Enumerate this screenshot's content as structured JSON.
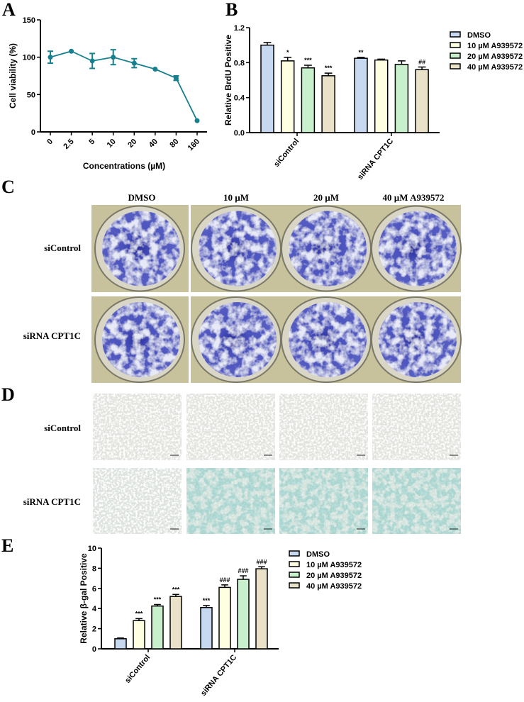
{
  "panel_labels": {
    "a": "A",
    "b": "B",
    "c": "C",
    "d": "D",
    "e": "E"
  },
  "chart_data": [
    {
      "type": "line",
      "panel": "A",
      "ylabel": "Cell viability (%)",
      "xlabel": "Concentrations (µM)",
      "categories": [
        "0",
        "2.5",
        "5",
        "10",
        "20",
        "40",
        "80",
        "160"
      ],
      "series": [
        {
          "values": [
            100,
            108,
            95,
            100,
            92,
            84,
            72,
            15
          ],
          "errors": [
            8,
            1,
            10,
            10,
            6,
            1,
            3,
            1
          ],
          "color": "#17808f"
        }
      ],
      "ylim": [
        0,
        150
      ],
      "yticks": [
        "0",
        "50",
        "100",
        "150"
      ],
      "grid": false
    },
    {
      "type": "bar",
      "panel": "B",
      "ylabel": "Relative BrdU Positive",
      "categories": [
        "siControl",
        "siRNA CPT1C"
      ],
      "series": [
        {
          "name": "DMSO",
          "values": [
            1.0,
            0.85
          ],
          "errors": [
            0.03,
            0.01
          ],
          "annotations": [
            "",
            "**"
          ],
          "color": "#c6d9f1"
        },
        {
          "name": "10 µM A939572",
          "values": [
            0.82,
            0.83
          ],
          "errors": [
            0.04,
            0.01
          ],
          "annotations": [
            "*",
            ""
          ],
          "color": "#fefee0"
        },
        {
          "name": "20 µM A939572",
          "values": [
            0.74,
            0.78
          ],
          "errors": [
            0.03,
            0.04
          ],
          "annotations": [
            "***",
            ""
          ],
          "color": "#c8f0cc"
        },
        {
          "name": "40 µM A939572",
          "values": [
            0.65,
            0.72
          ],
          "errors": [
            0.03,
            0.03
          ],
          "annotations": [
            "***",
            "##"
          ],
          "color": "#e9e2c8"
        }
      ],
      "ylim": [
        0,
        1.2
      ],
      "yticks": [
        "0.0",
        "0.4",
        "0.8",
        "1.2"
      ],
      "legend": "right",
      "grid": false
    },
    {
      "type": "bar",
      "panel": "E",
      "ylabel": "Relative β-gal Positive",
      "categories": [
        "siControl",
        "siRNA CPT1C"
      ],
      "series": [
        {
          "name": "DMSO",
          "values": [
            1.0,
            4.1
          ],
          "errors": [
            0.08,
            0.2
          ],
          "annotations": [
            "",
            "***"
          ],
          "color": "#c6d9f1"
        },
        {
          "name": "10 µM A939572",
          "values": [
            2.8,
            6.1
          ],
          "errors": [
            0.2,
            0.25
          ],
          "annotations": [
            "***",
            "###"
          ],
          "color": "#fefee0"
        },
        {
          "name": "20 µM A939572",
          "values": [
            4.25,
            6.9
          ],
          "errors": [
            0.15,
            0.35
          ],
          "annotations": [
            "***",
            "###"
          ],
          "color": "#c8f0cc"
        },
        {
          "name": "40 µM A939572",
          "values": [
            5.2,
            7.95
          ],
          "errors": [
            0.2,
            0.2
          ],
          "annotations": [
            "***",
            "###"
          ],
          "color": "#e9e2c8"
        }
      ],
      "ylim": [
        0,
        10
      ],
      "yticks": [
        "0",
        "2",
        "4",
        "6",
        "8",
        "10"
      ],
      "legend": "right",
      "grid": false
    }
  ],
  "colony_panel": {
    "columns": [
      "DMSO",
      "10 µM",
      "20 µM",
      "40 µM A939572"
    ],
    "rows": [
      "siControl",
      "siRNA CPT1C"
    ],
    "stain_color": "#3d44b0"
  },
  "sa_bgal_panel": {
    "rows": [
      "siControl",
      "siRNA CPT1C"
    ],
    "stain_color": "#3f9a8e"
  }
}
